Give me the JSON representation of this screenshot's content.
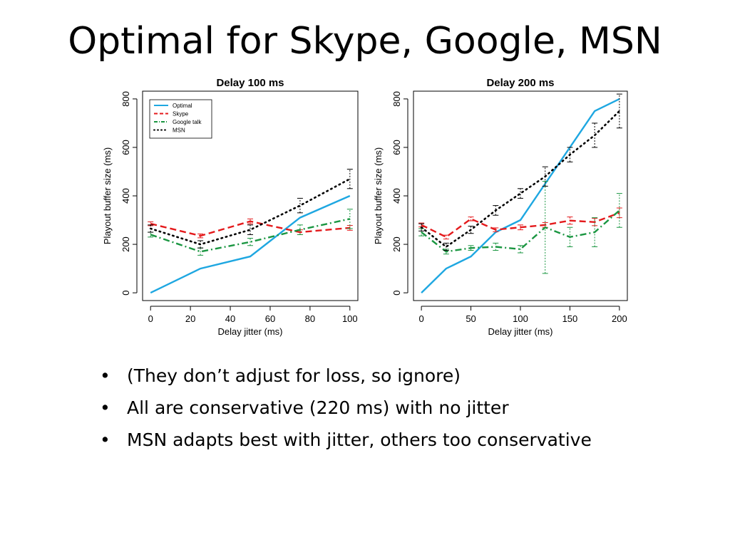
{
  "slide": {
    "title": "Optimal for Skype, Google, MSN",
    "bullets": [
      "(They don’t adjust for loss, so ignore)",
      "All are conservative (220 ms) with no jitter",
      "MSN adapts best with jitter, others too conservative"
    ]
  },
  "chart_data": [
    {
      "type": "line",
      "title": "Delay 100 ms",
      "xlabel": "Delay jitter (ms)",
      "ylabel": "Playout buffer size (ms)",
      "xlim": [
        0,
        100
      ],
      "ylim": [
        0,
        800
      ],
      "xticks": [
        0,
        20,
        40,
        60,
        80,
        100
      ],
      "yticks": [
        0,
        200,
        400,
        600,
        800
      ],
      "grid": false,
      "legend": "top-left",
      "series": [
        {
          "name": "Optimal",
          "color": "#1ea7e1",
          "style": "solid",
          "x": [
            0,
            25,
            50,
            75,
            100
          ],
          "y": [
            0,
            100,
            150,
            310,
            400
          ]
        },
        {
          "name": "Skype",
          "color": "#e41a1c",
          "style": "dashed",
          "x": [
            0,
            25,
            50,
            75,
            100
          ],
          "y": [
            285,
            235,
            295,
            250,
            268
          ],
          "err": [
            8,
            8,
            10,
            10,
            10
          ]
        },
        {
          "name": "Google talk",
          "color": "#1a9641",
          "style": "dashdot",
          "x": [
            0,
            25,
            50,
            75,
            100
          ],
          "y": [
            240,
            170,
            210,
            260,
            305
          ],
          "err": [
            10,
            15,
            15,
            20,
            40
          ]
        },
        {
          "name": "MSN",
          "color": "#000000",
          "style": "dotted",
          "x": [
            0,
            25,
            50,
            75,
            100
          ],
          "y": [
            265,
            200,
            260,
            360,
            470
          ],
          "err": [
            15,
            15,
            20,
            30,
            40
          ]
        }
      ]
    },
    {
      "type": "line",
      "title": "Delay 200 ms",
      "xlabel": "Delay jitter (ms)",
      "ylabel": "Playout buffer size (ms)",
      "xlim": [
        0,
        200
      ],
      "ylim": [
        0,
        800
      ],
      "xticks": [
        0,
        50,
        100,
        150,
        200
      ],
      "yticks": [
        0,
        200,
        400,
        600,
        800
      ],
      "grid": false,
      "legend": "none",
      "series": [
        {
          "name": "Optimal",
          "color": "#1ea7e1",
          "style": "solid",
          "x": [
            0,
            25,
            50,
            75,
            100,
            125,
            150,
            175,
            200
          ],
          "y": [
            0,
            100,
            150,
            250,
            300,
            450,
            600,
            750,
            800
          ]
        },
        {
          "name": "Skype",
          "color": "#e41a1c",
          "style": "dashed",
          "x": [
            0,
            25,
            50,
            75,
            100,
            125,
            150,
            175,
            200
          ],
          "y": [
            280,
            230,
            305,
            260,
            270,
            280,
            298,
            292,
            330
          ],
          "err": [
            8,
            8,
            8,
            8,
            10,
            10,
            15,
            15,
            20
          ]
        },
        {
          "name": "Google talk",
          "color": "#1a9641",
          "style": "dashdot",
          "x": [
            0,
            25,
            50,
            75,
            100,
            125,
            150,
            175,
            200
          ],
          "y": [
            250,
            170,
            185,
            190,
            180,
            270,
            230,
            250,
            340
          ],
          "err": [
            15,
            10,
            10,
            15,
            15,
            190,
            40,
            60,
            70
          ]
        },
        {
          "name": "MSN",
          "color": "#000000",
          "style": "dotted",
          "x": [
            0,
            25,
            50,
            75,
            100,
            125,
            150,
            175,
            200
          ],
          "y": [
            270,
            190,
            260,
            340,
            410,
            480,
            570,
            650,
            750
          ],
          "err": [
            15,
            15,
            15,
            20,
            20,
            40,
            30,
            50,
            70
          ]
        }
      ]
    }
  ]
}
